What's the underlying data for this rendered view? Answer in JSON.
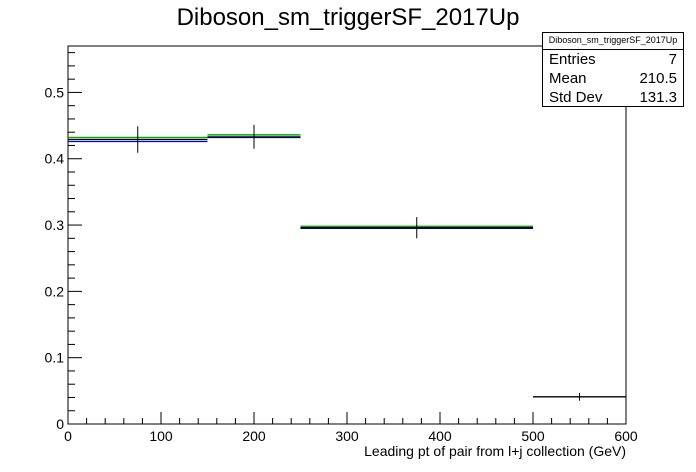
{
  "title": "Diboson_sm_triggerSF_2017Up",
  "stats": {
    "name": "Diboson_sm_triggerSF_2017Up",
    "entries_label": "Entries",
    "entries": "7",
    "mean_label": "Mean",
    "mean": "210.5",
    "stddev_label": "Std Dev",
    "stddev": "131.3"
  },
  "colors": {
    "nominal": "#000000",
    "up": "#00aa00",
    "down": "#0000cc"
  },
  "chart_data": {
    "type": "histogram",
    "title": "Diboson_sm_triggerSF_2017Up",
    "xlabel": "Leading pt of pair from l+j collection (GeV)",
    "ylabel": "",
    "xlim": [
      0,
      600
    ],
    "ylim": [
      0,
      0.57
    ],
    "x_ticks": [
      0,
      100,
      200,
      300,
      400,
      500,
      600
    ],
    "y_ticks": [
      0,
      0.1,
      0.2,
      0.3,
      0.4,
      0.5
    ],
    "x_tick_labels": [
      "0",
      "100",
      "200",
      "300",
      "400",
      "500",
      "600"
    ],
    "y_tick_labels": [
      "0",
      "0.1",
      "0.2",
      "0.3",
      "0.4",
      "0.5"
    ],
    "bins": [
      {
        "x0": 0,
        "x1": 150,
        "value": 0.429,
        "error": 0.02,
        "up": 0.432,
        "down": 0.426
      },
      {
        "x0": 150,
        "x1": 250,
        "value": 0.433,
        "error": 0.018,
        "up": 0.436,
        "down": 0.432
      },
      {
        "x0": 250,
        "x1": 500,
        "value": 0.296,
        "error": 0.016,
        "up": 0.298,
        "down": 0.295
      },
      {
        "x0": 500,
        "x1": 600,
        "value": 0.041,
        "error": 0.006
      }
    ]
  }
}
